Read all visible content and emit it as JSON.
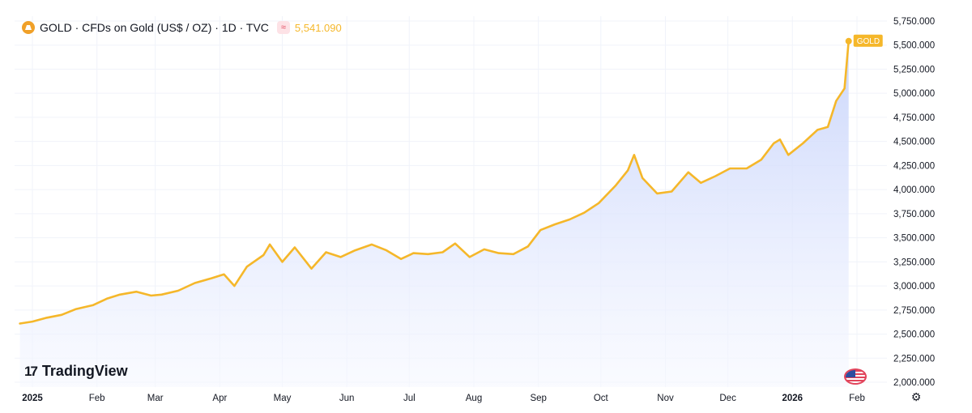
{
  "header": {
    "symbol_title": "GOLD · CFDs on Gold (US$ / OZ) · 1D · TVC",
    "last_price": "5,541.090",
    "icon": "gold-symbol-icon",
    "indicator_icon": "approx-wave-icon"
  },
  "watermark": {
    "logo_mark": "17",
    "brand": "TradingView"
  },
  "price_tag": "GOLD",
  "colors": {
    "line": "#f5b72a",
    "area_top": "#c8d4fb",
    "area_bottom": "#f6f8ff",
    "grid": "#f0f3fa",
    "text": "#131722",
    "tag_bg": "#f5b72a"
  },
  "chart_data": {
    "type": "area",
    "title": "GOLD · CFDs on Gold (US$ / OZ) · 1D · TVC",
    "xlabel": "",
    "ylabel": "",
    "ylim": [
      1950,
      5800
    ],
    "grid": true,
    "y_ticks": [
      2000,
      2250,
      2500,
      2750,
      3000,
      3250,
      3500,
      3750,
      4000,
      4250,
      4500,
      4750,
      5000,
      5250,
      5500,
      5750
    ],
    "y_tick_labels": [
      "2,000.000",
      "2,250.000",
      "2,500.000",
      "2,750.000",
      "3,000.000",
      "3,250.000",
      "3,500.000",
      "3,750.000",
      "4,000.000",
      "4,250.000",
      "4,500.000",
      "4,750.000",
      "5,000.000",
      "5,250.000",
      "5,500.000",
      "5,750.000"
    ],
    "x_ticks": [
      {
        "date": "2025-01-01",
        "label": "2025",
        "bold": true
      },
      {
        "date": "2025-02-01",
        "label": "Feb"
      },
      {
        "date": "2025-03-01",
        "label": "Mar"
      },
      {
        "date": "2025-04-01",
        "label": "Apr"
      },
      {
        "date": "2025-05-01",
        "label": "May"
      },
      {
        "date": "2025-06-01",
        "label": "Jun"
      },
      {
        "date": "2025-07-01",
        "label": "Jul"
      },
      {
        "date": "2025-08-01",
        "label": "Aug"
      },
      {
        "date": "2025-09-01",
        "label": "Sep"
      },
      {
        "date": "2025-10-01",
        "label": "Oct"
      },
      {
        "date": "2025-11-01",
        "label": "Nov"
      },
      {
        "date": "2025-12-01",
        "label": "Dec"
      },
      {
        "date": "2026-01-01",
        "label": "2026",
        "bold": true
      },
      {
        "date": "2026-02-01",
        "label": "Feb"
      }
    ],
    "series": [
      {
        "x": [
          "2024-12-26",
          "2025-01-01",
          "2025-01-08",
          "2025-01-15",
          "2025-01-22",
          "2025-01-30",
          "2025-02-06",
          "2025-02-12",
          "2025-02-20",
          "2025-02-27",
          "2025-03-04",
          "2025-03-12",
          "2025-03-20",
          "2025-03-28",
          "2025-04-03",
          "2025-04-08",
          "2025-04-14",
          "2025-04-22",
          "2025-04-25",
          "2025-05-01",
          "2025-05-07",
          "2025-05-15",
          "2025-05-22",
          "2025-05-29",
          "2025-06-05",
          "2025-06-13",
          "2025-06-20",
          "2025-06-27",
          "2025-07-03",
          "2025-07-10",
          "2025-07-17",
          "2025-07-23",
          "2025-07-30",
          "2025-08-06",
          "2025-08-13",
          "2025-08-20",
          "2025-08-27",
          "2025-09-02",
          "2025-09-09",
          "2025-09-16",
          "2025-09-23",
          "2025-09-30",
          "2025-10-08",
          "2025-10-14",
          "2025-10-17",
          "2025-10-21",
          "2025-10-28",
          "2025-11-04",
          "2025-11-12",
          "2025-11-18",
          "2025-11-25",
          "2025-12-02",
          "2025-12-10",
          "2025-12-17",
          "2025-12-23",
          "2025-12-26",
          "2025-12-30",
          "2026-01-06",
          "2026-01-13",
          "2026-01-18",
          "2026-01-22",
          "2026-01-26",
          "2026-01-28"
        ],
        "values": [
          2610,
          2630,
          2670,
          2700,
          2760,
          2800,
          2870,
          2910,
          2940,
          2900,
          2910,
          2950,
          3030,
          3080,
          3120,
          3000,
          3200,
          3320,
          3430,
          3250,
          3400,
          3180,
          3350,
          3300,
          3370,
          3430,
          3370,
          3280,
          3340,
          3330,
          3350,
          3440,
          3300,
          3380,
          3340,
          3330,
          3410,
          3580,
          3640,
          3690,
          3760,
          3860,
          4040,
          4200,
          4360,
          4120,
          3960,
          3980,
          4180,
          4070,
          4140,
          4220,
          4220,
          4310,
          4480,
          4520,
          4360,
          4480,
          4620,
          4650,
          4920,
          5050,
          5541
        ]
      }
    ]
  }
}
